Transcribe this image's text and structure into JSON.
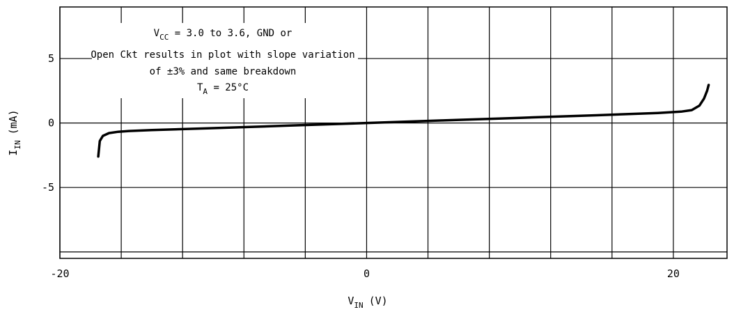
{
  "chart_data": {
    "type": "line",
    "xlim": [
      -20,
      23.5
    ],
    "ylim": [
      -10.5,
      9
    ],
    "x_ticks": [
      -20,
      0,
      20
    ],
    "x_tick_labels": [
      "-20",
      "0",
      "20"
    ],
    "y_ticks": [
      5,
      0,
      -5
    ],
    "y_tick_labels": [
      "5",
      "0",
      "-5"
    ],
    "x_grid": [
      -20,
      -16,
      -12,
      -8,
      -4,
      0,
      4,
      8,
      12,
      16,
      20
    ],
    "y_grid": [
      -10,
      -5,
      0,
      5
    ],
    "grid": true,
    "xlabel": {
      "main": "V",
      "sub": "IN",
      "unit": "(V)"
    },
    "ylabel": {
      "main": "I",
      "sub": "IN",
      "unit": "(mA)"
    },
    "annotation": {
      "line1": {
        "pre": "V",
        "sub": "CC",
        "post": " = 3.0 to 3.6, GND or"
      },
      "line2": "Open Ckt results in plot with slope variation",
      "line3": "of ±3% and same breakdown",
      "line4": {
        "pre": "T",
        "sub": "A",
        "post": " = 25°C"
      }
    },
    "series": [
      {
        "x": [
          -17.5,
          -17.4,
          -17.2,
          -16.8,
          -16.2,
          -15.5,
          -14,
          -10,
          -5,
          0,
          5,
          10,
          15,
          19,
          20.5,
          21.2,
          21.7,
          22.0,
          22.2,
          22.3
        ],
        "y": [
          -2.6,
          -1.4,
          -1.0,
          -0.78,
          -0.68,
          -0.62,
          -0.55,
          -0.4,
          -0.2,
          0.0,
          0.2,
          0.4,
          0.6,
          0.78,
          0.88,
          1.0,
          1.35,
          1.9,
          2.5,
          2.95
        ]
      }
    ]
  }
}
